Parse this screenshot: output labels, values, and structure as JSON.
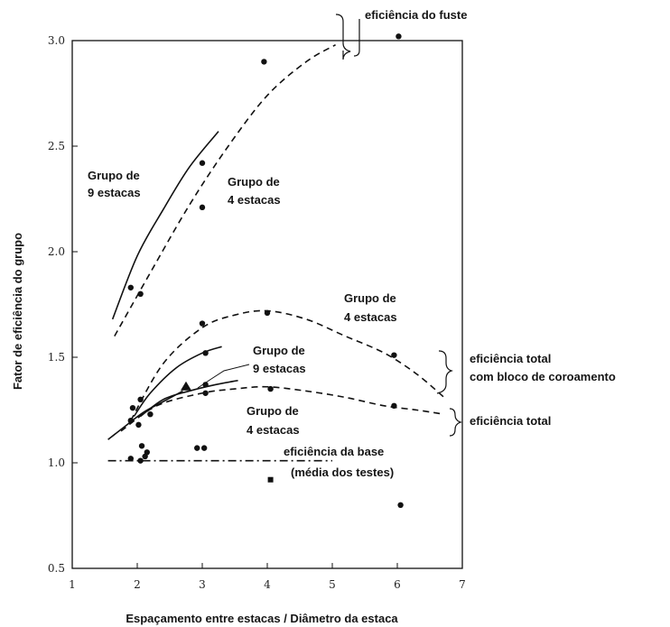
{
  "chart_data": {
    "type": "line",
    "xlabel": "Espaçamento entre estacas / Diâmetro da estaca",
    "ylabel": "Fator de eficiência do grupo",
    "xlim": [
      1,
      7
    ],
    "ylim": [
      0.5,
      3.0
    ],
    "xticks": [
      "1",
      "2",
      "3",
      "4",
      "5",
      "6",
      "7"
    ],
    "yticks": [
      "0.5",
      "1.0",
      "1.5",
      "2.0",
      "2.5",
      "3.0"
    ],
    "grid": false,
    "series": [
      {
        "group": "fuste",
        "style": "solid",
        "x": [
          1.62,
          2.0,
          2.4,
          2.8,
          3.25
        ],
        "y": [
          1.68,
          1.98,
          2.2,
          2.4,
          2.57
        ]
      },
      {
        "group": "fuste",
        "style": "dashed",
        "x": [
          1.65,
          2.2,
          2.8,
          3.4,
          4.0,
          4.6,
          5.05
        ],
        "y": [
          1.6,
          1.9,
          2.22,
          2.5,
          2.74,
          2.9,
          2.98
        ]
      },
      {
        "group": "total_bloco",
        "style": "dashed",
        "x": [
          1.9,
          2.4,
          3.0,
          3.5,
          4.0,
          4.6,
          5.2,
          5.8,
          6.3,
          6.72
        ],
        "y": [
          1.2,
          1.47,
          1.64,
          1.7,
          1.72,
          1.68,
          1.6,
          1.52,
          1.42,
          1.31
        ]
      },
      {
        "group": "total_bloco",
        "style": "solid",
        "x": [
          1.95,
          2.2,
          2.6,
          3.0,
          3.3
        ],
        "y": [
          1.22,
          1.33,
          1.45,
          1.52,
          1.55
        ]
      },
      {
        "group": "total",
        "style": "solid",
        "x": [
          2.05,
          2.4,
          2.8,
          3.2,
          3.55
        ],
        "y": [
          1.22,
          1.3,
          1.34,
          1.37,
          1.39
        ]
      },
      {
        "group": "total",
        "style": "solid",
        "x": [
          1.55,
          1.8,
          2.1,
          2.4,
          2.7
        ],
        "y": [
          1.11,
          1.17,
          1.24,
          1.29,
          1.34
        ]
      },
      {
        "group": "total",
        "style": "dashed",
        "x": [
          1.75,
          2.3,
          3.0,
          3.5,
          4.0,
          4.6,
          5.2,
          5.8,
          6.3,
          6.72
        ],
        "y": [
          1.15,
          1.27,
          1.33,
          1.35,
          1.36,
          1.34,
          1.31,
          1.27,
          1.25,
          1.23
        ]
      },
      {
        "group": "base",
        "style": "dashdot",
        "x": [
          1.55,
          5.0
        ],
        "y": [
          1.01,
          1.01
        ]
      }
    ],
    "points": {
      "circles": [
        {
          "x": 6.02,
          "y": 3.02
        },
        {
          "x": 3.95,
          "y": 2.9
        },
        {
          "x": 3.0,
          "y": 2.42
        },
        {
          "x": 3.0,
          "y": 2.21
        },
        {
          "x": 1.9,
          "y": 1.83
        },
        {
          "x": 2.05,
          "y": 1.8
        },
        {
          "x": 3.0,
          "y": 1.66
        },
        {
          "x": 4.0,
          "y": 1.71
        },
        {
          "x": 5.95,
          "y": 1.51
        },
        {
          "x": 3.05,
          "y": 1.52
        },
        {
          "x": 2.05,
          "y": 1.3
        },
        {
          "x": 1.93,
          "y": 1.26
        },
        {
          "x": 3.05,
          "y": 1.37
        },
        {
          "x": 3.05,
          "y": 1.33
        },
        {
          "x": 4.05,
          "y": 1.35
        },
        {
          "x": 5.95,
          "y": 1.27
        },
        {
          "x": 2.2,
          "y": 1.23
        },
        {
          "x": 1.9,
          "y": 1.2
        },
        {
          "x": 2.02,
          "y": 1.18
        },
        {
          "x": 2.07,
          "y": 1.08
        },
        {
          "x": 2.15,
          "y": 1.05
        },
        {
          "x": 2.12,
          "y": 1.03
        },
        {
          "x": 1.9,
          "y": 1.02
        },
        {
          "x": 2.05,
          "y": 1.01
        },
        {
          "x": 2.92,
          "y": 1.07
        },
        {
          "x": 3.03,
          "y": 1.07
        },
        {
          "x": 6.05,
          "y": 0.8
        }
      ],
      "squares": [
        {
          "x": 4.05,
          "y": 0.92
        }
      ],
      "triangles": [
        {
          "x": 2.75,
          "y": 1.36
        }
      ]
    }
  },
  "annotations": {
    "grupo9_top_line1": "Grupo de",
    "grupo9_top_line2": "9 estacas",
    "grupo4_top_line1": "Grupo de",
    "grupo4_top_line2": "4 estacas",
    "grupo4_mid_line1": "Grupo de",
    "grupo4_mid_line2": "4 estacas",
    "grupo9_mid_line1": "Grupo de",
    "grupo9_mid_line2": "9 estacas",
    "grupo4_low_line1": "Grupo de",
    "grupo4_low_line2": "4 estacas",
    "base_line1": "eficiência da base",
    "base_line2": "(média dos testes)",
    "fuste": "eficiência do fuste",
    "total_bloco_line1": "eficiência total",
    "total_bloco_line2": "com bloco de coroamento",
    "total": "eficiência total"
  }
}
